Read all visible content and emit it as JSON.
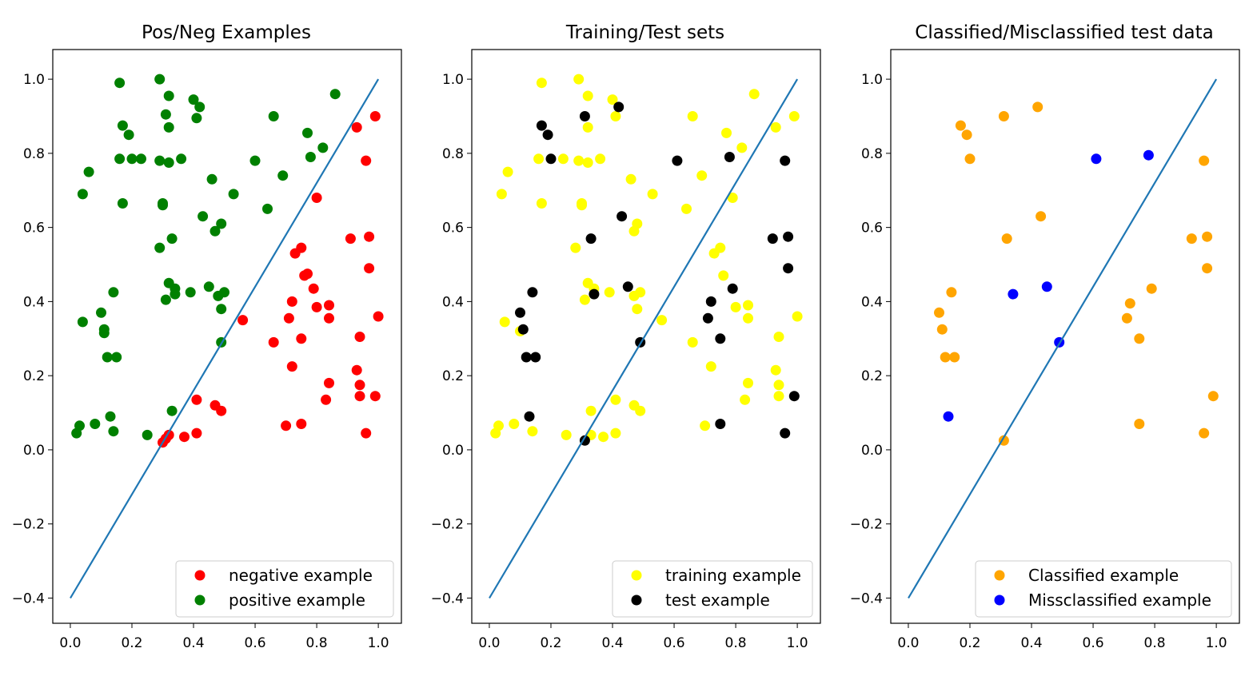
{
  "chart_data": [
    {
      "type": "scatter",
      "title": "Pos/Neg Examples",
      "xlim": [
        -0.057,
        1.075
      ],
      "ylim": [
        -0.468,
        1.08
      ],
      "xticks": [
        "0.0",
        "0.2",
        "0.4",
        "0.6",
        "0.8",
        "1.0"
      ],
      "yticks": [
        "−0.4",
        "−0.2",
        "0.0",
        "0.2",
        "0.4",
        "0.6",
        "0.8",
        "1.0"
      ],
      "legend_position": "lower-right",
      "line": {
        "x": [
          0.0,
          1.0
        ],
        "y": [
          -0.4,
          1.0
        ],
        "color": "#1f77b4"
      },
      "series": [
        {
          "name": "negative example",
          "color": "#ff0000",
          "points": [
            [
              0.3,
              0.02
            ],
            [
              0.32,
              0.04
            ],
            [
              0.31,
              0.03
            ],
            [
              0.37,
              0.035
            ],
            [
              0.41,
              0.045
            ],
            [
              0.41,
              0.135
            ],
            [
              0.47,
              0.12
            ],
            [
              0.49,
              0.105
            ],
            [
              0.56,
              0.35
            ],
            [
              0.66,
              0.29
            ],
            [
              0.7,
              0.065
            ],
            [
              0.71,
              0.355
            ],
            [
              0.72,
              0.4
            ],
            [
              0.72,
              0.225
            ],
            [
              0.73,
              0.53
            ],
            [
              0.75,
              0.545
            ],
            [
              0.75,
              0.3
            ],
            [
              0.75,
              0.07
            ],
            [
              0.76,
              0.47
            ],
            [
              0.77,
              0.475
            ],
            [
              0.79,
              0.435
            ],
            [
              0.8,
              0.385
            ],
            [
              0.8,
              0.68
            ],
            [
              0.83,
              0.135
            ],
            [
              0.84,
              0.355
            ],
            [
              0.84,
              0.39
            ],
            [
              0.84,
              0.18
            ],
            [
              0.91,
              0.57
            ],
            [
              0.93,
              0.87
            ],
            [
              0.93,
              0.215
            ],
            [
              0.94,
              0.305
            ],
            [
              0.94,
              0.175
            ],
            [
              0.94,
              0.145
            ],
            [
              0.96,
              0.78
            ],
            [
              0.96,
              0.045
            ],
            [
              0.97,
              0.575
            ],
            [
              0.97,
              0.49
            ],
            [
              0.99,
              0.9
            ],
            [
              1.0,
              0.36
            ],
            [
              0.99,
              0.145
            ]
          ]
        },
        {
          "name": "positive example",
          "color": "#008000",
          "points": [
            [
              0.02,
              0.045
            ],
            [
              0.03,
              0.065
            ],
            [
              0.04,
              0.69
            ],
            [
              0.04,
              0.345
            ],
            [
              0.06,
              0.75
            ],
            [
              0.08,
              0.07
            ],
            [
              0.1,
              0.37
            ],
            [
              0.11,
              0.325
            ],
            [
              0.11,
              0.315
            ],
            [
              0.12,
              0.25
            ],
            [
              0.13,
              0.09
            ],
            [
              0.14,
              0.05
            ],
            [
              0.14,
              0.425
            ],
            [
              0.15,
              0.25
            ],
            [
              0.16,
              0.785
            ],
            [
              0.16,
              0.99
            ],
            [
              0.17,
              0.665
            ],
            [
              0.17,
              0.875
            ],
            [
              0.19,
              0.85
            ],
            [
              0.2,
              0.785
            ],
            [
              0.23,
              0.785
            ],
            [
              0.25,
              0.04
            ],
            [
              0.29,
              0.78
            ],
            [
              0.29,
              1.0
            ],
            [
              0.29,
              0.545
            ],
            [
              0.3,
              0.665
            ],
            [
              0.3,
              0.66
            ],
            [
              0.31,
              0.905
            ],
            [
              0.31,
              0.405
            ],
            [
              0.32,
              0.955
            ],
            [
              0.32,
              0.87
            ],
            [
              0.32,
              0.45
            ],
            [
              0.32,
              0.775
            ],
            [
              0.33,
              0.57
            ],
            [
              0.33,
              0.105
            ],
            [
              0.34,
              0.42
            ],
            [
              0.34,
              0.435
            ],
            [
              0.36,
              0.785
            ],
            [
              0.39,
              0.425
            ],
            [
              0.4,
              0.945
            ],
            [
              0.41,
              0.895
            ],
            [
              0.42,
              0.925
            ],
            [
              0.43,
              0.63
            ],
            [
              0.45,
              0.44
            ],
            [
              0.46,
              0.73
            ],
            [
              0.47,
              0.59
            ],
            [
              0.48,
              0.415
            ],
            [
              0.49,
              0.61
            ],
            [
              0.49,
              0.38
            ],
            [
              0.49,
              0.29
            ],
            [
              0.5,
              0.425
            ],
            [
              0.53,
              0.69
            ],
            [
              0.6,
              0.78
            ],
            [
              0.64,
              0.65
            ],
            [
              0.66,
              0.9
            ],
            [
              0.69,
              0.74
            ],
            [
              0.77,
              0.855
            ],
            [
              0.78,
              0.79
            ],
            [
              0.82,
              0.815
            ],
            [
              0.86,
              0.96
            ]
          ]
        }
      ]
    },
    {
      "type": "scatter",
      "title": "Training/Test sets",
      "xlim": [
        -0.057,
        1.075
      ],
      "ylim": [
        -0.468,
        1.08
      ],
      "xticks": [
        "0.0",
        "0.2",
        "0.4",
        "0.6",
        "0.8",
        "1.0"
      ],
      "yticks": [
        "−0.4",
        "−0.2",
        "0.0",
        "0.2",
        "0.4",
        "0.6",
        "0.8",
        "1.0"
      ],
      "legend_position": "lower-right",
      "line": {
        "x": [
          0.0,
          1.0
        ],
        "y": [
          -0.4,
          1.0
        ],
        "color": "#1f77b4"
      },
      "series": [
        {
          "name": "training example",
          "color": "#ffff00",
          "points": [
            [
              0.02,
              0.045
            ],
            [
              0.03,
              0.065
            ],
            [
              0.04,
              0.69
            ],
            [
              0.05,
              0.345
            ],
            [
              0.06,
              0.75
            ],
            [
              0.08,
              0.07
            ],
            [
              0.1,
              0.32
            ],
            [
              0.14,
              0.05
            ],
            [
              0.16,
              0.785
            ],
            [
              0.17,
              0.99
            ],
            [
              0.17,
              0.665
            ],
            [
              0.24,
              0.785
            ],
            [
              0.25,
              0.04
            ],
            [
              0.29,
              0.78
            ],
            [
              0.29,
              1.0
            ],
            [
              0.28,
              0.545
            ],
            [
              0.3,
              0.665
            ],
            [
              0.3,
              0.66
            ],
            [
              0.31,
              0.405
            ],
            [
              0.32,
              0.955
            ],
            [
              0.32,
              0.87
            ],
            [
              0.32,
              0.45
            ],
            [
              0.32,
              0.775
            ],
            [
              0.33,
              0.105
            ],
            [
              0.33,
              0.04
            ],
            [
              0.34,
              0.435
            ],
            [
              0.36,
              0.785
            ],
            [
              0.37,
              0.035
            ],
            [
              0.39,
              0.425
            ],
            [
              0.4,
              0.945
            ],
            [
              0.41,
              0.9
            ],
            [
              0.41,
              0.135
            ],
            [
              0.41,
              0.045
            ],
            [
              0.46,
              0.73
            ],
            [
              0.47,
              0.59
            ],
            [
              0.47,
              0.415
            ],
            [
              0.47,
              0.12
            ],
            [
              0.48,
              0.61
            ],
            [
              0.48,
              0.38
            ],
            [
              0.49,
              0.105
            ],
            [
              0.49,
              0.425
            ],
            [
              0.53,
              0.69
            ],
            [
              0.56,
              0.35
            ],
            [
              0.64,
              0.65
            ],
            [
              0.66,
              0.9
            ],
            [
              0.66,
              0.29
            ],
            [
              0.69,
              0.74
            ],
            [
              0.7,
              0.065
            ],
            [
              0.72,
              0.225
            ],
            [
              0.73,
              0.53
            ],
            [
              0.75,
              0.545
            ],
            [
              0.76,
              0.47
            ],
            [
              0.77,
              0.855
            ],
            [
              0.79,
              0.68
            ],
            [
              0.8,
              0.385
            ],
            [
              0.82,
              0.815
            ],
            [
              0.83,
              0.135
            ],
            [
              0.84,
              0.355
            ],
            [
              0.84,
              0.39
            ],
            [
              0.84,
              0.18
            ],
            [
              0.86,
              0.96
            ],
            [
              0.93,
              0.87
            ],
            [
              0.93,
              0.215
            ],
            [
              0.94,
              0.305
            ],
            [
              0.94,
              0.175
            ],
            [
              0.94,
              0.145
            ],
            [
              0.99,
              0.9
            ],
            [
              1.0,
              0.36
            ]
          ]
        },
        {
          "name": "test example",
          "color": "#000000",
          "points": [
            [
              0.1,
              0.37
            ],
            [
              0.11,
              0.325
            ],
            [
              0.12,
              0.25
            ],
            [
              0.13,
              0.09
            ],
            [
              0.14,
              0.425
            ],
            [
              0.15,
              0.25
            ],
            [
              0.17,
              0.875
            ],
            [
              0.19,
              0.85
            ],
            [
              0.2,
              0.785
            ],
            [
              0.31,
              0.9
            ],
            [
              0.31,
              0.025
            ],
            [
              0.33,
              0.57
            ],
            [
              0.34,
              0.42
            ],
            [
              0.42,
              0.925
            ],
            [
              0.43,
              0.63
            ],
            [
              0.45,
              0.44
            ],
            [
              0.49,
              0.29
            ],
            [
              0.61,
              0.78
            ],
            [
              0.71,
              0.355
            ],
            [
              0.72,
              0.4
            ],
            [
              0.75,
              0.3
            ],
            [
              0.75,
              0.07
            ],
            [
              0.78,
              0.79
            ],
            [
              0.79,
              0.435
            ],
            [
              0.92,
              0.57
            ],
            [
              0.96,
              0.78
            ],
            [
              0.96,
              0.045
            ],
            [
              0.97,
              0.575
            ],
            [
              0.97,
              0.49
            ],
            [
              0.99,
              0.145
            ]
          ]
        }
      ]
    },
    {
      "type": "scatter",
      "title": "Classified/Misclassified test data",
      "xlim": [
        -0.057,
        1.075
      ],
      "ylim": [
        -0.468,
        1.08
      ],
      "xticks": [
        "0.0",
        "0.2",
        "0.4",
        "0.6",
        "0.8",
        "1.0"
      ],
      "yticks": [
        "−0.4",
        "−0.2",
        "0.0",
        "0.2",
        "0.4",
        "0.6",
        "0.8",
        "1.0"
      ],
      "legend_position": "lower-right",
      "line": {
        "x": [
          0.0,
          1.0
        ],
        "y": [
          -0.4,
          1.0
        ],
        "color": "#1f77b4"
      },
      "series": [
        {
          "name": "Classified example",
          "color": "#ffa500",
          "points": [
            [
              0.1,
              0.37
            ],
            [
              0.11,
              0.325
            ],
            [
              0.12,
              0.25
            ],
            [
              0.14,
              0.425
            ],
            [
              0.15,
              0.25
            ],
            [
              0.17,
              0.875
            ],
            [
              0.19,
              0.85
            ],
            [
              0.2,
              0.785
            ],
            [
              0.31,
              0.9
            ],
            [
              0.31,
              0.025
            ],
            [
              0.32,
              0.57
            ],
            [
              0.42,
              0.925
            ],
            [
              0.43,
              0.63
            ],
            [
              0.71,
              0.355
            ],
            [
              0.72,
              0.395
            ],
            [
              0.75,
              0.3
            ],
            [
              0.75,
              0.07
            ],
            [
              0.79,
              0.435
            ],
            [
              0.92,
              0.57
            ],
            [
              0.96,
              0.78
            ],
            [
              0.96,
              0.045
            ],
            [
              0.97,
              0.575
            ],
            [
              0.97,
              0.49
            ],
            [
              0.99,
              0.145
            ]
          ]
        },
        {
          "name": "Missclassified example",
          "color": "#0000ff",
          "points": [
            [
              0.13,
              0.09
            ],
            [
              0.34,
              0.42
            ],
            [
              0.45,
              0.44
            ],
            [
              0.49,
              0.29
            ],
            [
              0.61,
              0.785
            ],
            [
              0.78,
              0.795
            ]
          ]
        }
      ]
    }
  ]
}
